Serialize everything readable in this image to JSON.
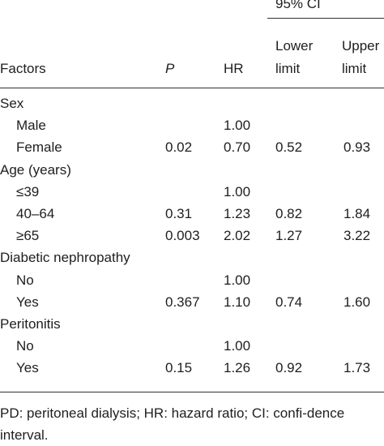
{
  "header": {
    "ci_group": "95% CI",
    "factors": "Factors",
    "p": "P",
    "hr": "HR",
    "lower_line1": "Lower",
    "lower_line2": "limit",
    "upper_line1": "Upper",
    "upper_line2": "limit"
  },
  "rows": [
    {
      "factor": "Sex",
      "p": "",
      "hr": "",
      "lower": "",
      "upper": "",
      "group": true
    },
    {
      "factor": "Male",
      "p": "",
      "hr": "1.00",
      "lower": "",
      "upper": ""
    },
    {
      "factor": "Female",
      "p": "0.02",
      "hr": "0.70",
      "lower": "0.52",
      "upper": "0.93"
    },
    {
      "factor": "Age (years)",
      "p": "",
      "hr": "",
      "lower": "",
      "upper": "",
      "group": true
    },
    {
      "factor": "≤39",
      "p": "",
      "hr": "1.00",
      "lower": "",
      "upper": ""
    },
    {
      "factor": "40–64",
      "p": "0.31",
      "hr": "1.23",
      "lower": "0.82",
      "upper": "1.84"
    },
    {
      "factor": "≥65",
      "p": "0.003",
      "hr": "2.02",
      "lower": "1.27",
      "upper": "3.22"
    },
    {
      "factor": "Diabetic nephropathy",
      "p": "",
      "hr": "",
      "lower": "",
      "upper": "",
      "group": true
    },
    {
      "factor": "No",
      "p": "",
      "hr": "1.00",
      "lower": "",
      "upper": ""
    },
    {
      "factor": "Yes",
      "p": "0.367",
      "hr": "1.10",
      "lower": "0.74",
      "upper": "1.60"
    },
    {
      "factor": "Peritonitis",
      "p": "",
      "hr": "",
      "lower": "",
      "upper": "",
      "group": true
    },
    {
      "factor": "No",
      "p": "",
      "hr": "1.00",
      "lower": "",
      "upper": ""
    },
    {
      "factor": "Yes",
      "p": "0.15",
      "hr": "1.26",
      "lower": "0.92",
      "upper": "1.73"
    }
  ],
  "footnote": "PD: peritoneal dialysis; HR: hazard ratio; CI: confi-dence interval."
}
